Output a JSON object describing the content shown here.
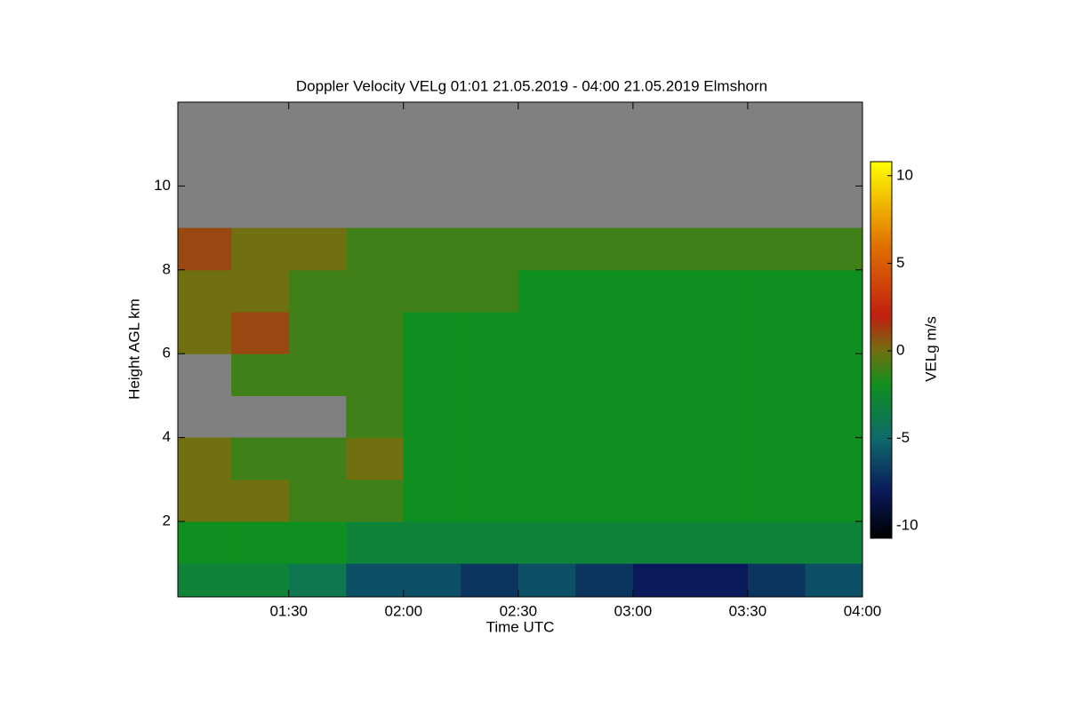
{
  "chart_data": {
    "type": "heatmap",
    "title": "Doppler Velocity VELg   01:01 21.05.2019 - 04:00 21.05.2019 Elmshorn",
    "xlabel": "Time UTC",
    "ylabel": "Height AGL km",
    "colorbar_label": "VELg m/s",
    "xlim": [
      1.0167,
      4.0
    ],
    "xticks": [
      {
        "value": 1.5,
        "label": "01:30"
      },
      {
        "value": 2.0,
        "label": "02:00"
      },
      {
        "value": 2.5,
        "label": "02:30"
      },
      {
        "value": 3.0,
        "label": "03:00"
      },
      {
        "value": 3.5,
        "label": "03:30"
      },
      {
        "value": 4.0,
        "label": "04:00"
      }
    ],
    "ylim": [
      0.2,
      12.0
    ],
    "yticks": [
      2,
      4,
      6,
      8,
      10
    ],
    "zlim": [
      -10.7,
      10.8
    ],
    "zticks": [
      -10,
      -5,
      0,
      5,
      10
    ],
    "nodata_color": "#808080",
    "colorscale": [
      [
        -10.7,
        "#000000"
      ],
      [
        -8,
        "#0a1a5a"
      ],
      [
        -5,
        "#0e6a6a"
      ],
      [
        -2,
        "#0f8f1f"
      ],
      [
        0,
        "#707010"
      ],
      [
        2,
        "#c02010"
      ],
      [
        6,
        "#e07000"
      ],
      [
        10.8,
        "#ffff00"
      ]
    ],
    "xbins": [
      1.0167,
      1.25,
      1.5,
      1.75,
      2.0,
      2.25,
      2.5,
      2.75,
      3.0,
      3.25,
      3.5,
      3.75,
      4.0
    ],
    "ybins": [
      0.2,
      1,
      2,
      3,
      4,
      5,
      6,
      7,
      8,
      9,
      10,
      11,
      12.0
    ],
    "values": [
      [
        -3,
        -3,
        -4,
        -6,
        -6,
        -7,
        -6,
        -7,
        -8,
        -8,
        -7,
        -6
      ],
      [
        -2,
        -2,
        -2,
        -3,
        -3,
        -3,
        -3,
        -3,
        -3,
        -3,
        -3,
        -3
      ],
      [
        0,
        0,
        -1,
        -1,
        -2,
        -2,
        -2,
        -2,
        -2,
        -2,
        -2,
        -2
      ],
      [
        0,
        -1,
        -1,
        0,
        -2,
        -2,
        -2,
        -2,
        -2,
        -2,
        -2,
        -2
      ],
      [
        null,
        null,
        null,
        -1,
        -2,
        -2,
        -2,
        -2,
        -2,
        -2,
        -2,
        -2
      ],
      [
        null,
        -1,
        -1,
        -1,
        -2,
        -2,
        -2,
        -2,
        -2,
        -2,
        -2,
        -2
      ],
      [
        0,
        1,
        -1,
        -1,
        -2,
        -2,
        -2,
        -2,
        -2,
        -2,
        -2,
        -2
      ],
      [
        0,
        0,
        -1,
        -1,
        -1,
        -1,
        -2,
        -2,
        -2,
        -2,
        -2,
        -2
      ],
      [
        1,
        0,
        0,
        -1,
        -1,
        -1,
        -1,
        -1,
        -1,
        -1,
        -1,
        -1
      ],
      [
        null,
        null,
        null,
        null,
        null,
        null,
        null,
        null,
        null,
        null,
        null,
        null
      ],
      [
        null,
        null,
        null,
        null,
        null,
        null,
        null,
        null,
        null,
        null,
        null,
        null
      ],
      [
        null,
        null,
        null,
        null,
        null,
        null,
        null,
        null,
        null,
        null,
        null,
        null
      ]
    ]
  }
}
